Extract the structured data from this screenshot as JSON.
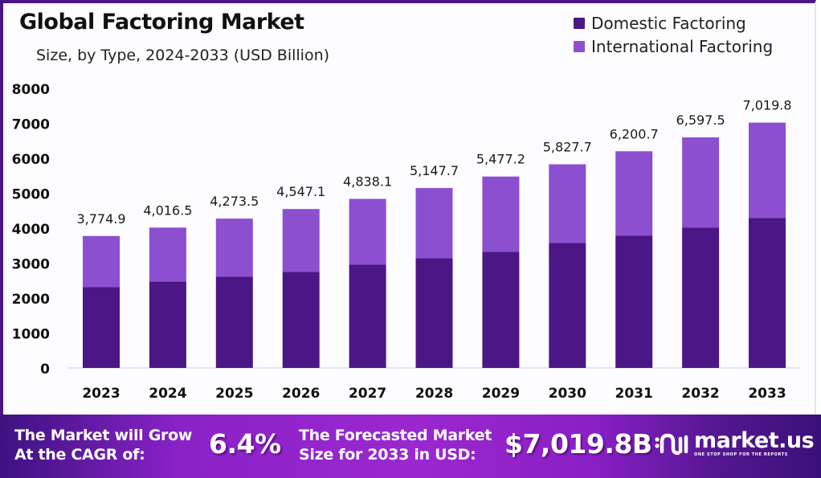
{
  "header": {
    "title": "Global Factoring Market",
    "subtitle": "Size, by Type, 2024-2033 (USD Billion)"
  },
  "legend": [
    {
      "label": "Domestic Factoring",
      "color": "#4b1787"
    },
    {
      "label": "International Factoring",
      "color": "#8c4fd0"
    }
  ],
  "chart_data": {
    "type": "bar",
    "stacked": true,
    "title": "Global Factoring Market",
    "subtitle": "Size, by Type, 2024-2033 (USD Billion)",
    "xlabel": "",
    "ylabel": "",
    "categories": [
      "2023",
      "2024",
      "2025",
      "2026",
      "2027",
      "2028",
      "2029",
      "2030",
      "2031",
      "2032",
      "2033"
    ],
    "totals": [
      3774.9,
      4016.5,
      4273.5,
      4547.1,
      4838.1,
      5147.7,
      5477.2,
      5827.7,
      6200.7,
      6597.5,
      7019.8
    ],
    "total_labels": [
      "3,774.9",
      "4,016.5",
      "4,273.5",
      "4,547.1",
      "4,838.1",
      "5,147.7",
      "5,477.2",
      "5,827.7",
      "6,200.7",
      "6,597.5",
      "7,019.8"
    ],
    "series": [
      {
        "name": "Domestic Factoring",
        "color": "#4b1787",
        "values": [
          2310,
          2470,
          2610,
          2750,
          2955,
          3140,
          3325,
          3580,
          3790,
          4020,
          4295
        ]
      },
      {
        "name": "International Factoring",
        "color": "#8c4fd0",
        "values": [
          1464.9,
          1546.5,
          1663.5,
          1797.1,
          1883.1,
          2007.7,
          2152.2,
          2247.7,
          2410.7,
          2577.5,
          2724.8
        ]
      }
    ],
    "ylim": [
      0,
      8000
    ],
    "yticks": [
      0,
      1000,
      2000,
      3000,
      4000,
      5000,
      6000,
      7000,
      8000
    ],
    "ytick_labels": [
      "0",
      "1000",
      "2000",
      "3000",
      "4000",
      "5000",
      "6000",
      "7000",
      "8000"
    ],
    "grid": false,
    "legend_position": "top-right"
  },
  "banner": {
    "cagr_text_line1": "The Market will Grow",
    "cagr_text_line2": "At the CAGR of:",
    "cagr_value": "6.4%",
    "forecast_text_line1": "The Forecasted Market",
    "forecast_text_line2": "Size for 2033 in USD:",
    "forecast_value": "$7,019.8B",
    "brand_name": "market.us",
    "brand_tagline": "ONE STOP SHOP FOR THE REPORTS"
  }
}
